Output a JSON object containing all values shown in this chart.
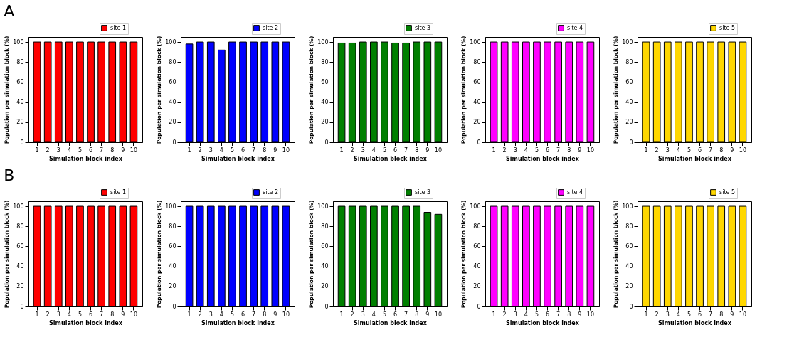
{
  "chart_data": [
    {
      "type": "bar",
      "annotations": [
        "A"
      ],
      "categories": [
        "1",
        "2",
        "3",
        "4",
        "5",
        "6",
        "7",
        "8",
        "9",
        "10"
      ],
      "xlabel": "Simulation block index",
      "ylabel": "Population per simulation block (%)",
      "ylim": [
        0,
        105
      ],
      "yticks": [
        0,
        20,
        40,
        60,
        80,
        100
      ],
      "legend": "top right",
      "series": [
        {
          "name": "site 1",
          "color": "#ff0000",
          "values": [
            100,
            100,
            100,
            100,
            100,
            100,
            100,
            100,
            100,
            100
          ]
        }
      ]
    },
    {
      "type": "bar",
      "categories": [
        "1",
        "2",
        "3",
        "4",
        "5",
        "6",
        "7",
        "8",
        "9",
        "10"
      ],
      "xlabel": "Simulation block index",
      "ylabel": "Population per simulation block (%)",
      "ylim": [
        0,
        105
      ],
      "yticks": [
        0,
        20,
        40,
        60,
        80,
        100
      ],
      "legend": "top right",
      "series": [
        {
          "name": "site 2",
          "color": "#0000ff",
          "values": [
            98,
            100,
            100,
            92,
            100,
            100,
            100,
            100,
            100,
            100
          ]
        }
      ]
    },
    {
      "type": "bar",
      "categories": [
        "1",
        "2",
        "3",
        "4",
        "5",
        "6",
        "7",
        "8",
        "9",
        "10"
      ],
      "xlabel": "Simulation block index",
      "ylabel": "Population per simulation block (%)",
      "ylim": [
        0,
        105
      ],
      "yticks": [
        0,
        20,
        40,
        60,
        80,
        100
      ],
      "legend": "top right",
      "series": [
        {
          "name": "site 3",
          "color": "#008000",
          "values": [
            99,
            99,
            100,
            100,
            100,
            99,
            99,
            100,
            100,
            100
          ]
        }
      ]
    },
    {
      "type": "bar",
      "categories": [
        "1",
        "2",
        "3",
        "4",
        "5",
        "6",
        "7",
        "8",
        "9",
        "10"
      ],
      "xlabel": "Simulation block index",
      "ylabel": "Population per simulation block (%)",
      "ylim": [
        0,
        105
      ],
      "yticks": [
        0,
        20,
        40,
        60,
        80,
        100
      ],
      "legend": "top right",
      "series": [
        {
          "name": "site 4",
          "color": "#ff00ff",
          "values": [
            100,
            100,
            100,
            100,
            100,
            100,
            100,
            100,
            100,
            100
          ]
        }
      ]
    },
    {
      "type": "bar",
      "categories": [
        "1",
        "2",
        "3",
        "4",
        "5",
        "6",
        "7",
        "8",
        "9",
        "10"
      ],
      "xlabel": "Simulation block index",
      "ylabel": "Population per simulation block (%)",
      "ylim": [
        0,
        105
      ],
      "yticks": [
        0,
        20,
        40,
        60,
        80,
        100
      ],
      "legend": "top right",
      "series": [
        {
          "name": "site 5",
          "color": "#ffd700",
          "values": [
            100,
            100,
            100,
            100,
            100,
            100,
            100,
            100,
            100,
            100
          ]
        }
      ]
    },
    {
      "type": "bar",
      "annotations": [
        "B"
      ],
      "categories": [
        "1",
        "2",
        "3",
        "4",
        "5",
        "6",
        "7",
        "8",
        "9",
        "10"
      ],
      "xlabel": "Simulation block index",
      "ylabel": "Population per simulation block (%)",
      "ylim": [
        0,
        105
      ],
      "yticks": [
        0,
        20,
        40,
        60,
        80,
        100
      ],
      "legend": "top right",
      "series": [
        {
          "name": "site 1",
          "color": "#ff0000",
          "values": [
            100,
            100,
            100,
            100,
            100,
            100,
            100,
            100,
            100,
            100
          ]
        }
      ]
    },
    {
      "type": "bar",
      "categories": [
        "1",
        "2",
        "3",
        "4",
        "5",
        "6",
        "7",
        "8",
        "9",
        "10"
      ],
      "xlabel": "Simulation block index",
      "ylabel": "Population per simulation block (%)",
      "ylim": [
        0,
        105
      ],
      "yticks": [
        0,
        20,
        40,
        60,
        80,
        100
      ],
      "legend": "top right",
      "series": [
        {
          "name": "site 2",
          "color": "#0000ff",
          "values": [
            100,
            100,
            100,
            100,
            100,
            100,
            100,
            100,
            100,
            100
          ]
        }
      ]
    },
    {
      "type": "bar",
      "categories": [
        "1",
        "2",
        "3",
        "4",
        "5",
        "6",
        "7",
        "8",
        "9",
        "10"
      ],
      "xlabel": "Simulation block index",
      "ylabel": "Population per simulation block (%)",
      "ylim": [
        0,
        105
      ],
      "yticks": [
        0,
        20,
        40,
        60,
        80,
        100
      ],
      "legend": "top right",
      "series": [
        {
          "name": "site 3",
          "color": "#008000",
          "values": [
            100,
            100,
            100,
            100,
            100,
            100,
            100,
            100,
            94,
            92
          ]
        }
      ]
    },
    {
      "type": "bar",
      "categories": [
        "1",
        "2",
        "3",
        "4",
        "5",
        "6",
        "7",
        "8",
        "9",
        "10"
      ],
      "xlabel": "Simulation block index",
      "ylabel": "Population per simulation block (%)",
      "ylim": [
        0,
        105
      ],
      "yticks": [
        0,
        20,
        40,
        60,
        80,
        100
      ],
      "legend": "top right",
      "series": [
        {
          "name": "site 4",
          "color": "#ff00ff",
          "values": [
            100,
            100,
            100,
            100,
            100,
            100,
            100,
            100,
            100,
            100
          ]
        }
      ]
    },
    {
      "type": "bar",
      "categories": [
        "1",
        "2",
        "3",
        "4",
        "5",
        "6",
        "7",
        "8",
        "9",
        "10"
      ],
      "xlabel": "Simulation block index",
      "ylabel": "Population per simulation block (%)",
      "ylim": [
        0,
        105
      ],
      "yticks": [
        0,
        20,
        40,
        60,
        80,
        100
      ],
      "legend": "top right",
      "series": [
        {
          "name": "site 5",
          "color": "#ffd700",
          "values": [
            100,
            100,
            100,
            100,
            100,
            100,
            100,
            100,
            100,
            100
          ]
        }
      ]
    }
  ]
}
